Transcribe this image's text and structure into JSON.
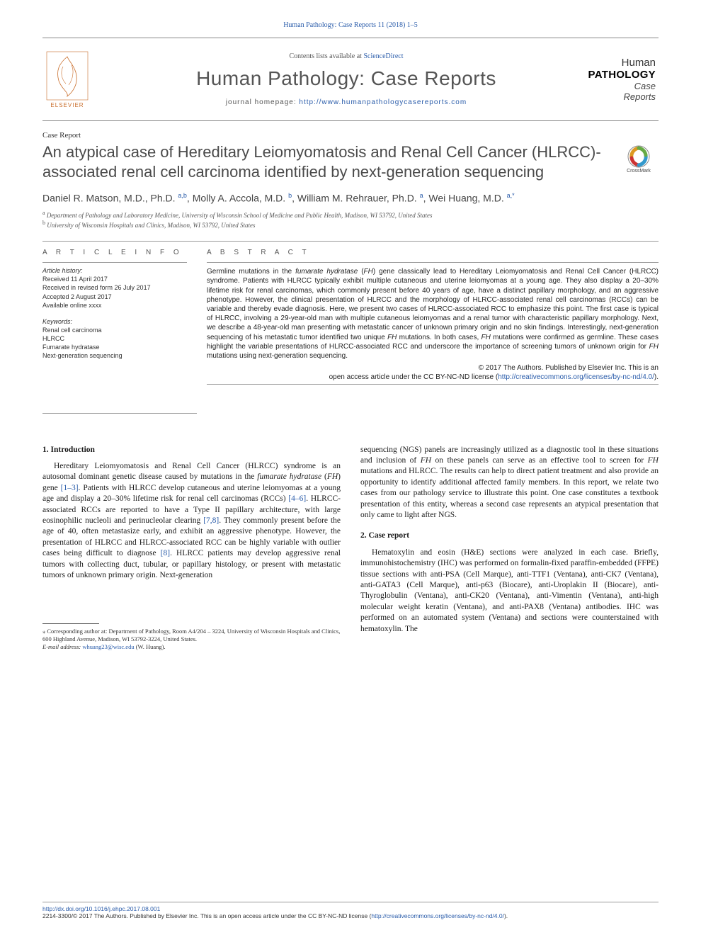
{
  "top_citation": "Human Pathology: Case Reports 11 (2018) 1–5",
  "header": {
    "contents_prefix": "Contents lists available at ",
    "contents_link": "ScienceDirect",
    "journal_name": "Human Pathology: Case Reports",
    "homepage_prefix": "journal homepage: ",
    "homepage_url": "http://www.humanpathologycasereports.com",
    "elsevier": "ELSEVIER",
    "cover": {
      "l1": "Human",
      "l2": "PATHOLOGY",
      "l3": "Case",
      "l4": "Reports"
    }
  },
  "article_type": "Case Report",
  "title": "An atypical case of Hereditary Leiomyomatosis and Renal Cell Cancer (HLRCC)-associated renal cell carcinoma identified by next-generation sequencing",
  "crossmark_label": "CrossMark",
  "authors_html": "Daniel R. Matson, M.D., Ph.D. <sup>a,b</sup>, Molly A. Accola, M.D. <sup>b</sup>, William M. Rehrauer, Ph.D. <sup>a</sup>, Wei Huang, M.D. <sup>a,*</sup>",
  "affiliations": [
    {
      "sup": "a",
      "text": "Department of Pathology and Laboratory Medicine, University of Wisconsin School of Medicine and Public Health, Madison, WI 53792, United States"
    },
    {
      "sup": "b",
      "text": "University of Wisconsin Hospitals and Clinics, Madison, WI 53792, United States"
    }
  ],
  "info": {
    "heading": "A R T I C L E   I N F O",
    "history_label": "Article history:",
    "history": [
      "Received 11 April 2017",
      "Received in revised form 26 July 2017",
      "Accepted 2 August 2017",
      "Available online xxxx"
    ],
    "keywords_label": "Keywords:",
    "keywords": [
      "Renal cell carcinoma",
      "HLRCC",
      "Fumarate hydratase",
      "Next-generation sequencing"
    ]
  },
  "abstract": {
    "heading": "A B S T R A C T",
    "text": "Germline mutations in the fumarate hydratase (FH) gene classically lead to Hereditary Leiomyomatosis and Renal Cell Cancer (HLRCC) syndrome. Patients with HLRCC typically exhibit multiple cutaneous and uterine leiomyomas at a young age. They also display a 20–30% lifetime risk for renal carcinomas, which commonly present before 40 years of age, have a distinct papillary morphology, and an aggressive phenotype. However, the clinical presentation of HLRCC and the morphology of HLRCC-associated renal cell carcinomas (RCCs) can be variable and thereby evade diagnosis. Here, we present two cases of HLRCC-associated RCC to emphasize this point. The first case is typical of HLRCC, involving a 29-year-old man with multiple cutaneous leiomyomas and a renal tumor with characteristic papillary morphology. Next, we describe a 48-year-old man presenting with metastatic cancer of unknown primary origin and no skin findings. Interestingly, next-generation sequencing of his metastatic tumor identified two unique FH mutations. In both cases, FH mutations were confirmed as germline. These cases highlight the variable presentations of HLRCC-associated RCC and underscore the importance of screening tumors of unknown origin for FH mutations using next-generation sequencing.",
    "copyright1": "© 2017 The Authors. Published by Elsevier Inc. This is an",
    "copyright2": "open access article under the CC BY-NC-ND license (",
    "license_url": "http://creativecommons.org/licenses/by-nc-nd/4.0/",
    "copyright3": ")."
  },
  "sections": {
    "intro_heading": "1. Introduction",
    "intro_text": "Hereditary Leiomyomatosis and Renal Cell Cancer (HLRCC) syndrome is an autosomal dominant genetic disease caused by mutations in the <span class=\"ital\">fumarate hydratase</span> (<span class=\"ital\">FH</span>) gene <a class=\"ref\" href=\"#\">[1–3]</a>. Patients with HLRCC develop cutaneous and uterine leiomyomas at a young age and display a 20–30% lifetime risk for renal cell carcinomas (RCCs) <a class=\"ref\" href=\"#\">[4–6]</a>. HLRCC-associated RCCs are reported to have a Type II papillary architecture, with large eosinophilic nucleoli and perinucleolar clearing <a class=\"ref\" href=\"#\">[7,8]</a>. They commonly present before the age of 40, often metastasize early, and exhibit an aggressive phenotype. However, the presentation of HLRCC and HLRCC-associated RCC can be highly variable with outlier cases being difficult to diagnose <a class=\"ref\" href=\"#\">[8]</a>. HLRCC patients may develop aggressive renal tumors with collecting duct, tubular, or papillary histology, or present with metastatic tumors of unknown primary origin. Next-generation",
    "col2_cont": "sequencing (NGS) panels are increasingly utilized as a diagnostic tool in these situations and inclusion of <span class=\"ital\">FH</span> on these panels can serve as an effective tool to screen for <span class=\"ital\">FH</span> mutations and HLRCC. The results can help to direct patient treatment and also provide an opportunity to identify additional affected family members. In this report, we relate two cases from our pathology service to illustrate this point. One case constitutes a textbook presentation of this entity, whereas a second case represents an atypical presentation that only came to light after NGS.",
    "case_heading": "2. Case report",
    "case_text": "Hematoxylin and eosin (H&E) sections were analyzed in each case. Briefly, immunohistochemistry (IHC) was performed on formalin-fixed paraffin-embedded (FFPE) tissue sections with anti-PSA (Cell Marque), anti-TTF1 (Ventana), anti-CK7 (Ventana), anti-GATA3 (Cell Marque), anti-p63 (Biocare), anti-Uroplakin II (Biocare), anti-Thyroglobulin (Ventana), anti-CK20 (Ventana), anti-Vimentin (Ventana), anti-high molecular weight keratin (Ventana), and anti-PAX8 (Ventana) antibodies. IHC was performed on an automated system (Ventana) and sections were counterstained with hematoxylin. The"
  },
  "footnote": {
    "corr_label": "⁎ Corresponding author at: Department of Pathology, Room A4/204 – 3224, University of Wisconsin Hospitals and Clinics, 600 Highland Avenue, Madison, WI 53792-3224, United States.",
    "email_label": "E-mail address:",
    "email": "whuang23@wisc.edu",
    "email_who": "(W. Huang)."
  },
  "bottom": {
    "doi": "http://dx.doi.org/10.1016/j.ehpc.2017.08.001",
    "issn_line": "2214-3300/© 2017 The Authors. Published by Elsevier Inc. This is an open access article under the CC BY-NC-ND license (",
    "license_url": "http://creativecommons.org/licenses/by-nc-nd/4.0/",
    "close": ")."
  },
  "colors": {
    "link": "#2a5caa",
    "text": "#1a1a1a",
    "gray": "#555555",
    "rule": "#999999",
    "elsevier_orange": "#c96d2a"
  }
}
